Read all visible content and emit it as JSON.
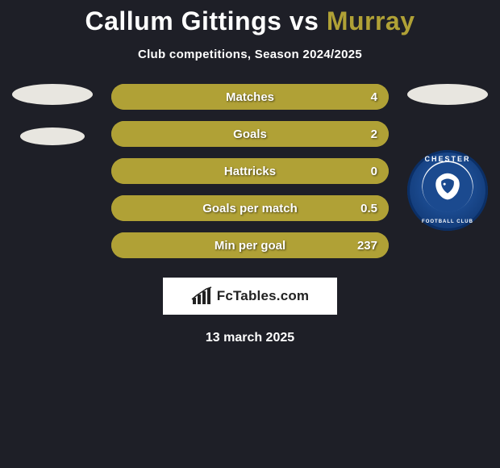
{
  "colors": {
    "background": "#1e1f27",
    "player1_accent": "#ffffff",
    "player2_accent": "#b0a136",
    "bar_p1": "#e8e6e0",
    "bar_p2": "#b0a136",
    "ellipse": "#e8e6e0",
    "brand_bg": "#ffffff",
    "brand_text": "#222222"
  },
  "header": {
    "player1": "Callum Gittings",
    "vs": "vs",
    "player2": "Murray",
    "subtitle": "Club competitions, Season 2024/2025"
  },
  "club_badge_right": {
    "top_text": "CHESTER",
    "bottom_text": "FOOTBALL CLUB",
    "outer_color": "#0b2f66",
    "inner_color": "#1b4a8f"
  },
  "stats": [
    {
      "label": "Matches",
      "p1": "",
      "p2": "4",
      "p1_pct": 0,
      "p2_pct": 100
    },
    {
      "label": "Goals",
      "p1": "",
      "p2": "2",
      "p1_pct": 0,
      "p2_pct": 100
    },
    {
      "label": "Hattricks",
      "p1": "",
      "p2": "0",
      "p1_pct": 0,
      "p2_pct": 100
    },
    {
      "label": "Goals per match",
      "p1": "",
      "p2": "0.5",
      "p1_pct": 0,
      "p2_pct": 100
    },
    {
      "label": "Min per goal",
      "p1": "",
      "p2": "237",
      "p1_pct": 0,
      "p2_pct": 100
    }
  ],
  "brand": "FcTables.com",
  "date": "13 march 2025"
}
